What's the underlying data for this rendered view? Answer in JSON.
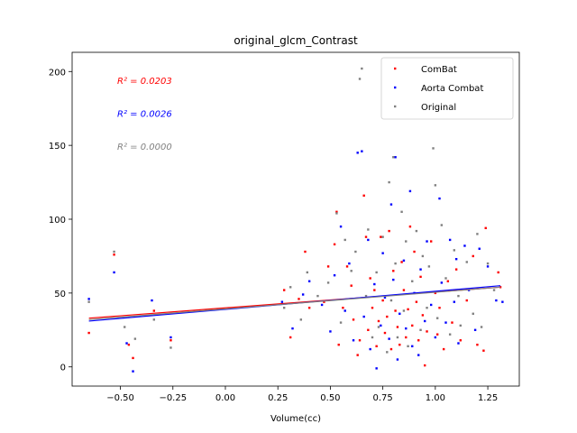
{
  "chart_data": {
    "type": "scatter",
    "title": "original_glcm_Contrast",
    "xlabel": "Volume(cc)",
    "ylabel": "",
    "xlim": [
      -0.73,
      1.4
    ],
    "ylim": [
      -13,
      213
    ],
    "xticks": [
      -0.5,
      -0.25,
      0.0,
      0.25,
      0.5,
      0.75,
      1.0,
      1.25
    ],
    "xtick_labels": [
      "−0.50",
      "−0.25",
      "0.00",
      "0.25",
      "0.50",
      "0.75",
      "1.00",
      "1.25"
    ],
    "yticks": [
      0,
      50,
      100,
      150,
      200
    ],
    "ytick_labels": [
      "0",
      "50",
      "100",
      "150",
      "200"
    ],
    "grid": false,
    "legend_position": "top-right",
    "annotations": [
      {
        "text": "R² = 0.0203",
        "color": "#ff0000"
      },
      {
        "text": "R² = 0.0026",
        "color": "#0000ff"
      },
      {
        "text": "R² = 0.0000",
        "color": "#808080"
      }
    ],
    "series": [
      {
        "name": "ComBat",
        "color": "#ff0000",
        "fit": {
          "x": [
            -0.65,
            1.31
          ],
          "y": [
            33,
            54
          ]
        },
        "points": [
          [
            -0.65,
            23
          ],
          [
            -0.53,
            76
          ],
          [
            -0.46,
            15
          ],
          [
            -0.44,
            6
          ],
          [
            -0.34,
            38
          ],
          [
            -0.26,
            18
          ],
          [
            0.28,
            52
          ],
          [
            0.31,
            20
          ],
          [
            0.35,
            46
          ],
          [
            0.38,
            78
          ],
          [
            0.4,
            40
          ],
          [
            0.47,
            44
          ],
          [
            0.49,
            68
          ],
          [
            0.52,
            83
          ],
          [
            0.53,
            105
          ],
          [
            0.54,
            15
          ],
          [
            0.56,
            40
          ],
          [
            0.58,
            68
          ],
          [
            0.6,
            55
          ],
          [
            0.61,
            32
          ],
          [
            0.63,
            8
          ],
          [
            0.64,
            18
          ],
          [
            0.66,
            116
          ],
          [
            0.67,
            88
          ],
          [
            0.68,
            25
          ],
          [
            0.69,
            60
          ],
          [
            0.7,
            40
          ],
          [
            0.71,
            52
          ],
          [
            0.72,
            14
          ],
          [
            0.73,
            31
          ],
          [
            0.74,
            88
          ],
          [
            0.75,
            45
          ],
          [
            0.76,
            23
          ],
          [
            0.77,
            34
          ],
          [
            0.78,
            92
          ],
          [
            0.79,
            12
          ],
          [
            0.8,
            65
          ],
          [
            0.81,
            38
          ],
          [
            0.82,
            27
          ],
          [
            0.83,
            15
          ],
          [
            0.84,
            71
          ],
          [
            0.85,
            52
          ],
          [
            0.86,
            20
          ],
          [
            0.87,
            39
          ],
          [
            0.88,
            95
          ],
          [
            0.89,
            28
          ],
          [
            0.9,
            78
          ],
          [
            0.91,
            44
          ],
          [
            0.92,
            18
          ],
          [
            0.93,
            61
          ],
          [
            0.94,
            35
          ],
          [
            0.95,
            1
          ],
          [
            0.96,
            24
          ],
          [
            0.98,
            85
          ],
          [
            1.0,
            50
          ],
          [
            1.01,
            22
          ],
          [
            1.02,
            40
          ],
          [
            1.04,
            12
          ],
          [
            1.06,
            58
          ],
          [
            1.08,
            30
          ],
          [
            1.1,
            66
          ],
          [
            1.12,
            18
          ],
          [
            1.15,
            45
          ],
          [
            1.18,
            75
          ],
          [
            1.2,
            15
          ],
          [
            1.23,
            11
          ],
          [
            1.24,
            94
          ],
          [
            1.3,
            64
          ],
          [
            1.31,
            54
          ]
        ]
      },
      {
        "name": "Aorta Combat",
        "color": "#0000ff",
        "fit": {
          "x": [
            -0.65,
            1.31
          ],
          "y": [
            31,
            55
          ]
        },
        "points": [
          [
            -0.65,
            46
          ],
          [
            -0.53,
            64
          ],
          [
            -0.47,
            16
          ],
          [
            -0.44,
            -3
          ],
          [
            -0.35,
            45
          ],
          [
            -0.26,
            20
          ],
          [
            0.27,
            44
          ],
          [
            0.32,
            26
          ],
          [
            0.37,
            49
          ],
          [
            0.4,
            58
          ],
          [
            0.46,
            42
          ],
          [
            0.5,
            24
          ],
          [
            0.52,
            62
          ],
          [
            0.55,
            95
          ],
          [
            0.57,
            38
          ],
          [
            0.59,
            70
          ],
          [
            0.61,
            18
          ],
          [
            0.63,
            145
          ],
          [
            0.65,
            146
          ],
          [
            0.66,
            34
          ],
          [
            0.68,
            86
          ],
          [
            0.69,
            12
          ],
          [
            0.71,
            56
          ],
          [
            0.72,
            -1
          ],
          [
            0.74,
            28
          ],
          [
            0.75,
            77
          ],
          [
            0.76,
            47
          ],
          [
            0.78,
            19
          ],
          [
            0.79,
            110
          ],
          [
            0.8,
            59
          ],
          [
            0.81,
            142
          ],
          [
            0.82,
            5
          ],
          [
            0.83,
            36
          ],
          [
            0.85,
            72
          ],
          [
            0.86,
            26
          ],
          [
            0.88,
            119
          ],
          [
            0.89,
            14
          ],
          [
            0.9,
            50
          ],
          [
            0.92,
            8
          ],
          [
            0.93,
            66
          ],
          [
            0.95,
            31
          ],
          [
            0.96,
            85
          ],
          [
            0.98,
            42
          ],
          [
            1.0,
            20
          ],
          [
            1.02,
            114
          ],
          [
            1.03,
            57
          ],
          [
            1.05,
            30
          ],
          [
            1.07,
            86
          ],
          [
            1.09,
            44
          ],
          [
            1.1,
            73
          ],
          [
            1.11,
            16
          ],
          [
            1.14,
            82
          ],
          [
            1.16,
            52
          ],
          [
            1.19,
            25
          ],
          [
            1.21,
            80
          ],
          [
            1.25,
            68
          ],
          [
            1.29,
            45
          ],
          [
            1.32,
            44
          ]
        ]
      },
      {
        "name": "Original",
        "color": "#808080",
        "fit": {
          "x": [
            -0.65,
            1.31
          ],
          "y": [
            32,
            54
          ]
        },
        "points": [
          [
            -0.65,
            44
          ],
          [
            -0.53,
            78
          ],
          [
            -0.48,
            27
          ],
          [
            -0.43,
            19
          ],
          [
            -0.34,
            32
          ],
          [
            -0.26,
            13
          ],
          [
            0.28,
            40
          ],
          [
            0.31,
            54
          ],
          [
            0.36,
            32
          ],
          [
            0.39,
            64
          ],
          [
            0.44,
            48
          ],
          [
            0.49,
            57
          ],
          [
            0.53,
            104
          ],
          [
            0.55,
            30
          ],
          [
            0.57,
            86
          ],
          [
            0.6,
            65
          ],
          [
            0.62,
            78
          ],
          [
            0.64,
            195
          ],
          [
            0.65,
            202
          ],
          [
            0.67,
            48
          ],
          [
            0.68,
            93
          ],
          [
            0.7,
            20
          ],
          [
            0.72,
            64
          ],
          [
            0.73,
            27
          ],
          [
            0.75,
            88
          ],
          [
            0.77,
            10
          ],
          [
            0.78,
            125
          ],
          [
            0.79,
            45
          ],
          [
            0.8,
            142
          ],
          [
            0.81,
            70
          ],
          [
            0.82,
            20
          ],
          [
            0.84,
            105
          ],
          [
            0.85,
            38
          ],
          [
            0.86,
            85
          ],
          [
            0.87,
            14
          ],
          [
            0.89,
            58
          ],
          [
            0.91,
            92
          ],
          [
            0.93,
            25
          ],
          [
            0.94,
            75
          ],
          [
            0.96,
            40
          ],
          [
            0.97,
            68
          ],
          [
            0.99,
            148
          ],
          [
            1.0,
            123
          ],
          [
            1.01,
            33
          ],
          [
            1.03,
            96
          ],
          [
            1.05,
            60
          ],
          [
            1.07,
            22
          ],
          [
            1.09,
            79
          ],
          [
            1.11,
            48
          ],
          [
            1.12,
            28
          ],
          [
            1.15,
            71
          ],
          [
            1.18,
            36
          ],
          [
            1.2,
            90
          ],
          [
            1.22,
            27
          ],
          [
            1.25,
            70
          ],
          [
            1.28,
            52
          ]
        ]
      }
    ]
  }
}
